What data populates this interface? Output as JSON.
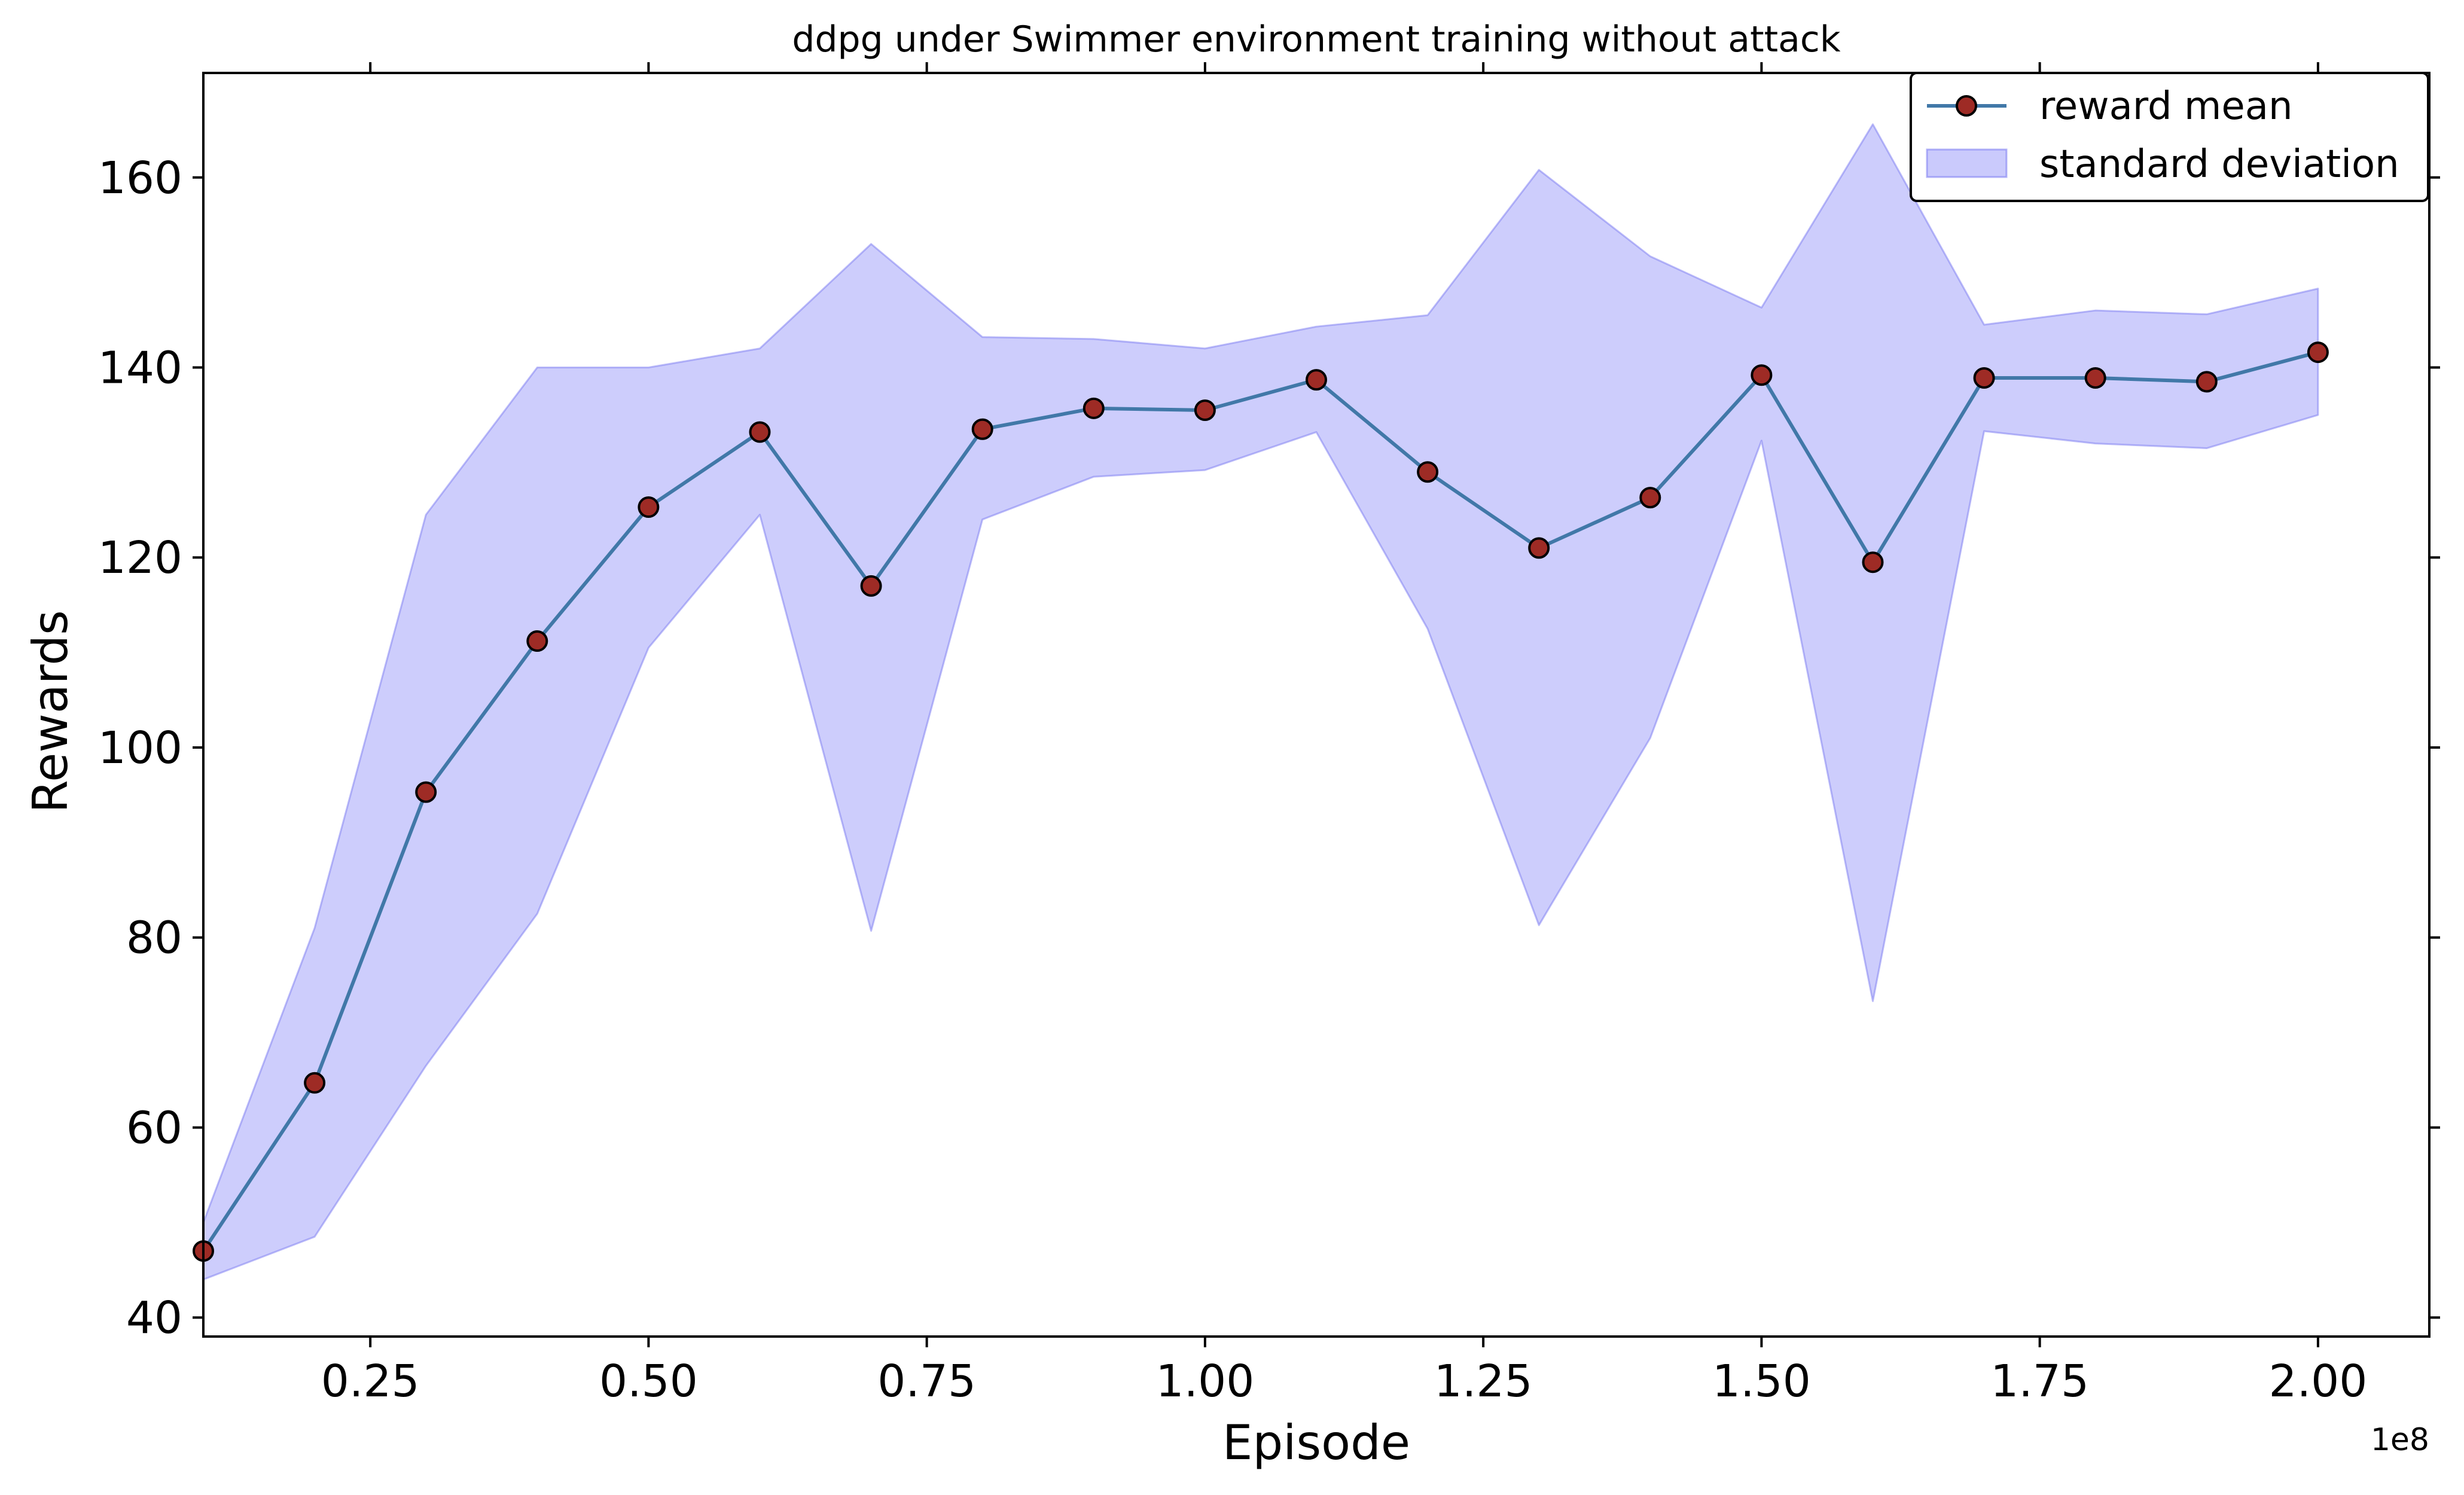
{
  "chart_data": {
    "type": "line",
    "title": "ddpg under Swimmer environment training without attack",
    "xlabel": "Episode",
    "ylabel": "Rewards",
    "x_offset_label": "1e8",
    "x_scale": 100000000,
    "xlim": [
      0.1,
      2.1
    ],
    "ylim": [
      38,
      171
    ],
    "x_ticks": [
      0.25,
      0.5,
      0.75,
      1.0,
      1.25,
      1.5,
      1.75,
      2.0
    ],
    "x_tick_labels": [
      "0.25",
      "0.50",
      "0.75",
      "1.00",
      "1.25",
      "1.50",
      "1.75",
      "2.00"
    ],
    "y_ticks": [
      40,
      60,
      80,
      100,
      120,
      140,
      160
    ],
    "y_tick_labels": [
      "40",
      "60",
      "80",
      "100",
      "120",
      "140",
      "160"
    ],
    "grid": false,
    "legend_position": "top-right",
    "x": [
      0.1,
      0.2,
      0.3,
      0.4,
      0.5,
      0.6,
      0.7,
      0.8,
      0.9,
      1.0,
      1.1,
      1.2,
      1.3,
      1.4,
      1.5,
      1.6,
      1.7,
      1.8,
      1.9,
      2.0
    ],
    "series": [
      {
        "name": "reward mean",
        "kind": "line-marker",
        "color": "#4178a8",
        "marker_color": "#9e2b25",
        "values": [
          47,
          64.7,
          95.3,
          111.2,
          125.3,
          133.2,
          117,
          133.5,
          135.7,
          135.5,
          138.7,
          129,
          121,
          126.3,
          139.2,
          119.5,
          138.9,
          138.9,
          138.5,
          141.6
        ]
      },
      {
        "name": "standard deviation",
        "kind": "band",
        "color": "#7b7bf7",
        "upper": [
          50,
          81,
          124.5,
          140,
          140,
          142,
          153,
          143.2,
          143,
          142,
          144.3,
          145.5,
          160.8,
          151.7,
          146.3,
          165.6,
          144.5,
          146,
          145.6,
          148.3
        ],
        "lower": [
          44,
          48.5,
          66.5,
          82.5,
          110.5,
          124.5,
          80.7,
          124,
          128.5,
          129.2,
          133.2,
          112.5,
          81.3,
          101,
          132.3,
          73.3,
          133.3,
          132,
          131.5,
          135
        ]
      }
    ]
  }
}
